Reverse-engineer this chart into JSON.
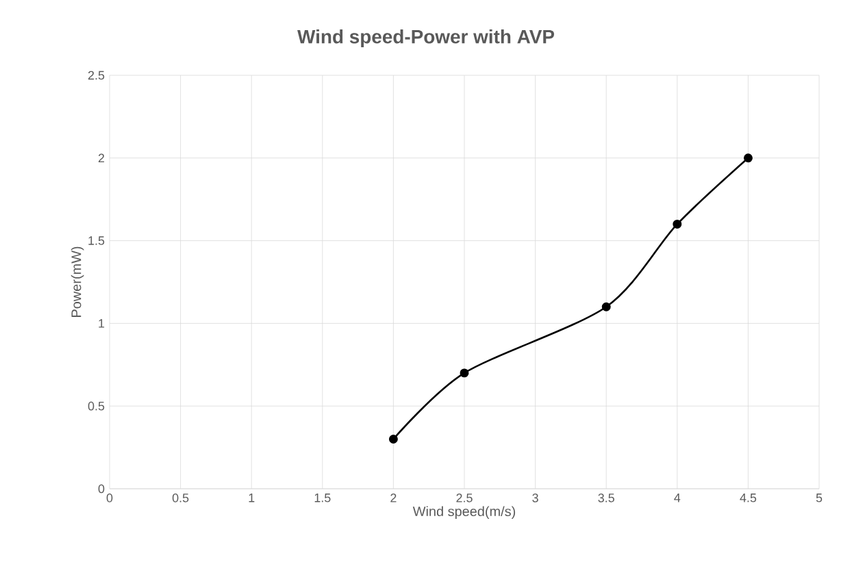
{
  "chart_data": {
    "type": "line",
    "title": "Wind speed-Power with AVP",
    "xlabel": "Wind speed(m/s)",
    "ylabel": "Power(mW)",
    "x": [
      2,
      2.5,
      3.5,
      4,
      4.5
    ],
    "series": [
      {
        "color": "#000000",
        "values": [
          0.3,
          0.7,
          1.1,
          1.6,
          2
        ]
      }
    ],
    "xlim": [
      0,
      5
    ],
    "xticks": [
      0,
      0.5,
      1,
      1.5,
      2,
      2.5,
      3,
      3.5,
      4,
      4.5,
      5
    ],
    "ylim": [
      0,
      2.5
    ],
    "yticks": [
      0,
      0.5,
      1,
      1.5,
      2,
      2.5
    ],
    "grid": true,
    "marker": "circle",
    "line_style": "solid"
  }
}
